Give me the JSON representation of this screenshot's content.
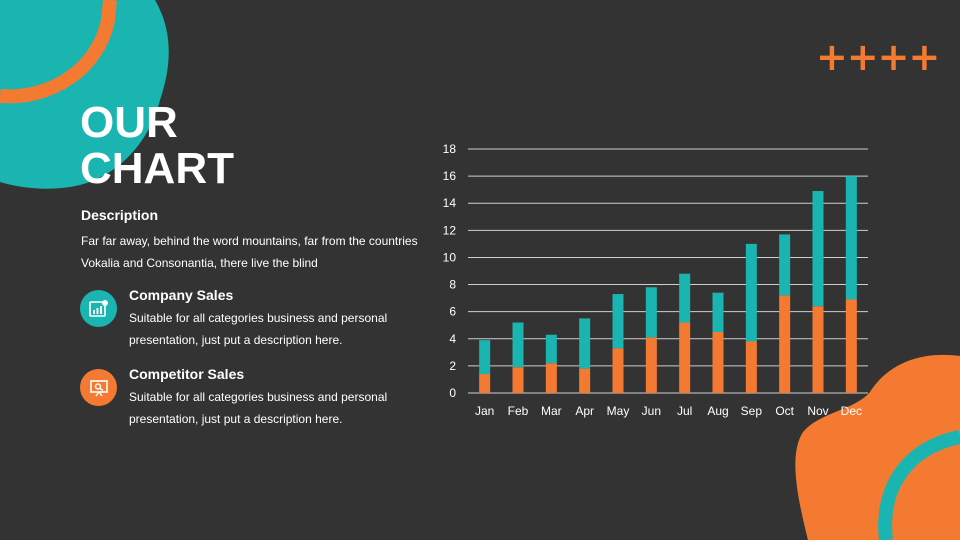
{
  "slide": {
    "title_line1": "OUR",
    "title_line2": "CHART",
    "plus_marks": "++++",
    "description_heading": "Description",
    "description_body": "Far far away, behind the word mountains, far from the countries Vokalia and Consonantia, there live the blind"
  },
  "items": [
    {
      "title": "Company Sales",
      "text": "Suitable for all categories business and personal presentation, just put a description here.",
      "icon": "chart-report-icon",
      "color": "#1AB5B0"
    },
    {
      "title": "Competitor Sales",
      "text": "Suitable for all categories business and personal presentation, just put a description here.",
      "icon": "presentation-board-icon",
      "color": "#F47A32"
    }
  ],
  "colors": {
    "background": "#333333",
    "teal": "#1AB5B0",
    "orange": "#F47A32",
    "gridline": "#CFCFCF"
  },
  "chart_data": {
    "type": "bar",
    "stacked": true,
    "categories": [
      "Jan",
      "Feb",
      "Mar",
      "Apr",
      "May",
      "Jun",
      "Jul",
      "Aug",
      "Sep",
      "Oct",
      "Nov",
      "Dec"
    ],
    "series": [
      {
        "values": [
          1.4,
          1.9,
          2.2,
          1.8,
          3.3,
          4.1,
          5.2,
          4.5,
          3.8,
          7.2,
          6.4,
          6.9
        ],
        "color": "#F47A32"
      },
      {
        "values": [
          2.5,
          3.3,
          2.1,
          3.7,
          4.0,
          3.7,
          3.6,
          2.9,
          7.2,
          4.5,
          8.5,
          9.1
        ],
        "color": "#1AB5B0"
      }
    ],
    "yticks": [
      0,
      2,
      4,
      6,
      8,
      10,
      12,
      14,
      16,
      18
    ],
    "ylim": [
      0,
      18
    ],
    "grid": true,
    "legend": "none"
  }
}
